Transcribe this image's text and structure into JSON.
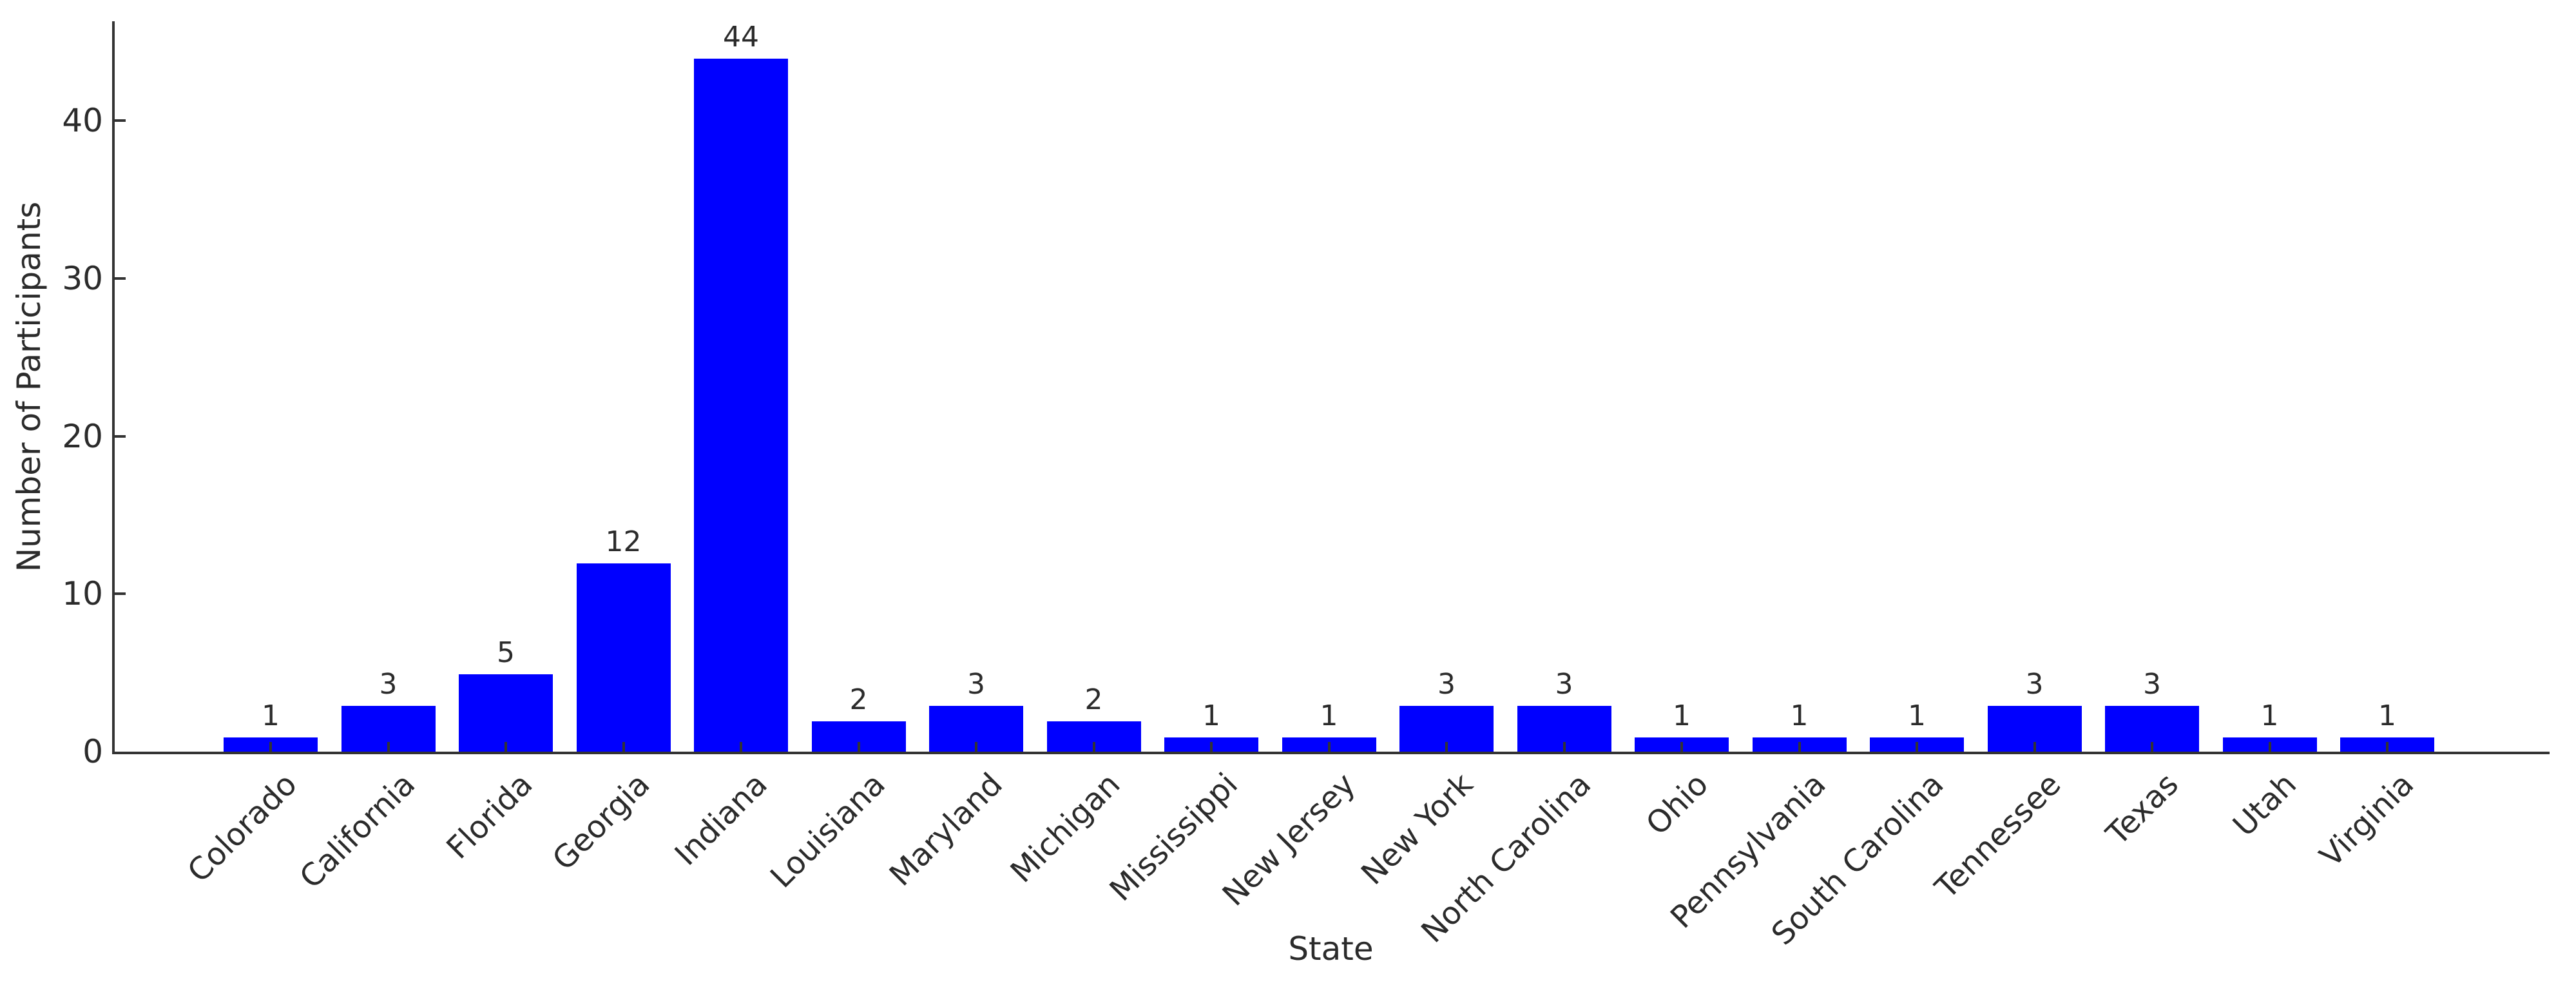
{
  "chart_data": {
    "type": "bar",
    "title": "",
    "xlabel": "State",
    "ylabel": "Number of Participants",
    "categories": [
      "Colorado",
      "California",
      "Florida",
      "Georgia",
      "Indiana",
      "Louisiana",
      "Maryland",
      "Michigan",
      "Mississippi",
      "New Jersey",
      "New York",
      "North Carolina",
      "Ohio",
      "Pennsylvania",
      "South Carolina",
      "Tennessee",
      "Texas",
      "Utah",
      "Virginia"
    ],
    "values": [
      1,
      3,
      5,
      12,
      44,
      2,
      3,
      2,
      1,
      1,
      3,
      3,
      1,
      1,
      1,
      3,
      3,
      1,
      1
    ],
    "bar_value_labels": [
      "1",
      "3",
      "5",
      "12",
      "44",
      "2",
      "3",
      "2",
      "1",
      "1",
      "3",
      "3",
      "1",
      "1",
      "1",
      "3",
      "3",
      "1",
      "1"
    ],
    "yticks": [
      0,
      10,
      20,
      30,
      40
    ],
    "ylim": [
      0,
      46.3
    ],
    "x_tick_rotation_deg": 45,
    "grid": false,
    "legend": null,
    "bar_color": "#0000ff",
    "axis_color": "#333333",
    "text_color": "#2b2b2b",
    "background_color": "#ffffff"
  }
}
